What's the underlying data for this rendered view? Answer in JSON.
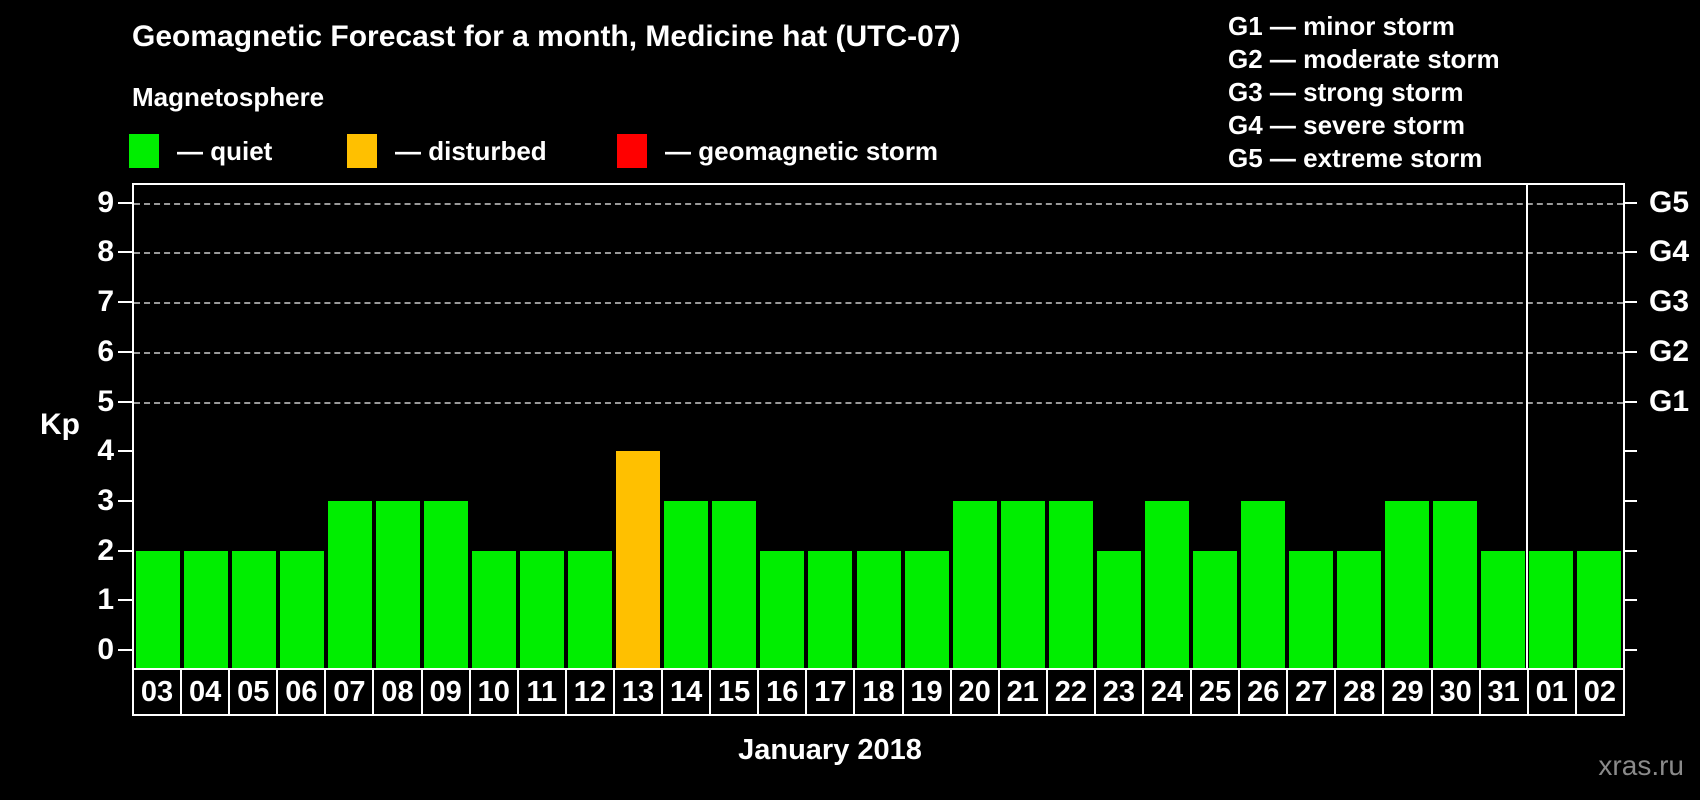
{
  "header": {
    "title": "Geomagnetic Forecast for a month, Medicine hat (UTC-07)",
    "subtitle": "Magnetosphere"
  },
  "legend": {
    "items": [
      {
        "name": "quiet",
        "label": "— quiet",
        "color": "#00ee00"
      },
      {
        "name": "disturbed",
        "label": "— disturbed",
        "color": "#ffc000"
      },
      {
        "name": "storm",
        "label": "— geomagnetic storm",
        "color": "#ff0000"
      }
    ]
  },
  "g_legend": {
    "items": [
      "G1 — minor storm",
      "G2 — moderate storm",
      "G3 — strong storm",
      "G4 — severe storm",
      "G5 — extreme storm"
    ]
  },
  "chart_data": {
    "type": "bar",
    "title": "Geomagnetic Forecast for a month, Medicine hat (UTC-07)",
    "xlabel": "January 2018",
    "ylabel": "Kp",
    "ylim": [
      0,
      9
    ],
    "yticks": [
      0,
      1,
      2,
      3,
      4,
      5,
      6,
      7,
      8,
      9
    ],
    "grid": "horizontal dashed lines at Kp 5 through 9",
    "legend_position": "top",
    "categories": [
      "03",
      "04",
      "05",
      "06",
      "07",
      "08",
      "09",
      "10",
      "11",
      "12",
      "13",
      "14",
      "15",
      "16",
      "17",
      "18",
      "19",
      "20",
      "21",
      "22",
      "23",
      "24",
      "25",
      "26",
      "27",
      "28",
      "29",
      "30",
      "31",
      "01",
      "02"
    ],
    "values": [
      2,
      2,
      2,
      2,
      3,
      3,
      3,
      2,
      2,
      2,
      4,
      3,
      3,
      2,
      2,
      2,
      2,
      3,
      3,
      3,
      2,
      3,
      2,
      3,
      2,
      2,
      3,
      3,
      2,
      2,
      2
    ],
    "statuses": [
      "quiet",
      "quiet",
      "quiet",
      "quiet",
      "quiet",
      "quiet",
      "quiet",
      "quiet",
      "quiet",
      "quiet",
      "disturbed",
      "quiet",
      "quiet",
      "quiet",
      "quiet",
      "quiet",
      "quiet",
      "quiet",
      "quiet",
      "quiet",
      "quiet",
      "quiet",
      "quiet",
      "quiet",
      "quiet",
      "quiet",
      "quiet",
      "quiet",
      "quiet",
      "quiet",
      "quiet"
    ],
    "right_axis": [
      {
        "kp": 5,
        "label": "G1"
      },
      {
        "kp": 6,
        "label": "G2"
      },
      {
        "kp": 7,
        "label": "G3"
      },
      {
        "kp": 8,
        "label": "G4"
      },
      {
        "kp": 9,
        "label": "G5"
      }
    ],
    "month_separator_before_category": "01"
  },
  "watermark": "xras.ru"
}
